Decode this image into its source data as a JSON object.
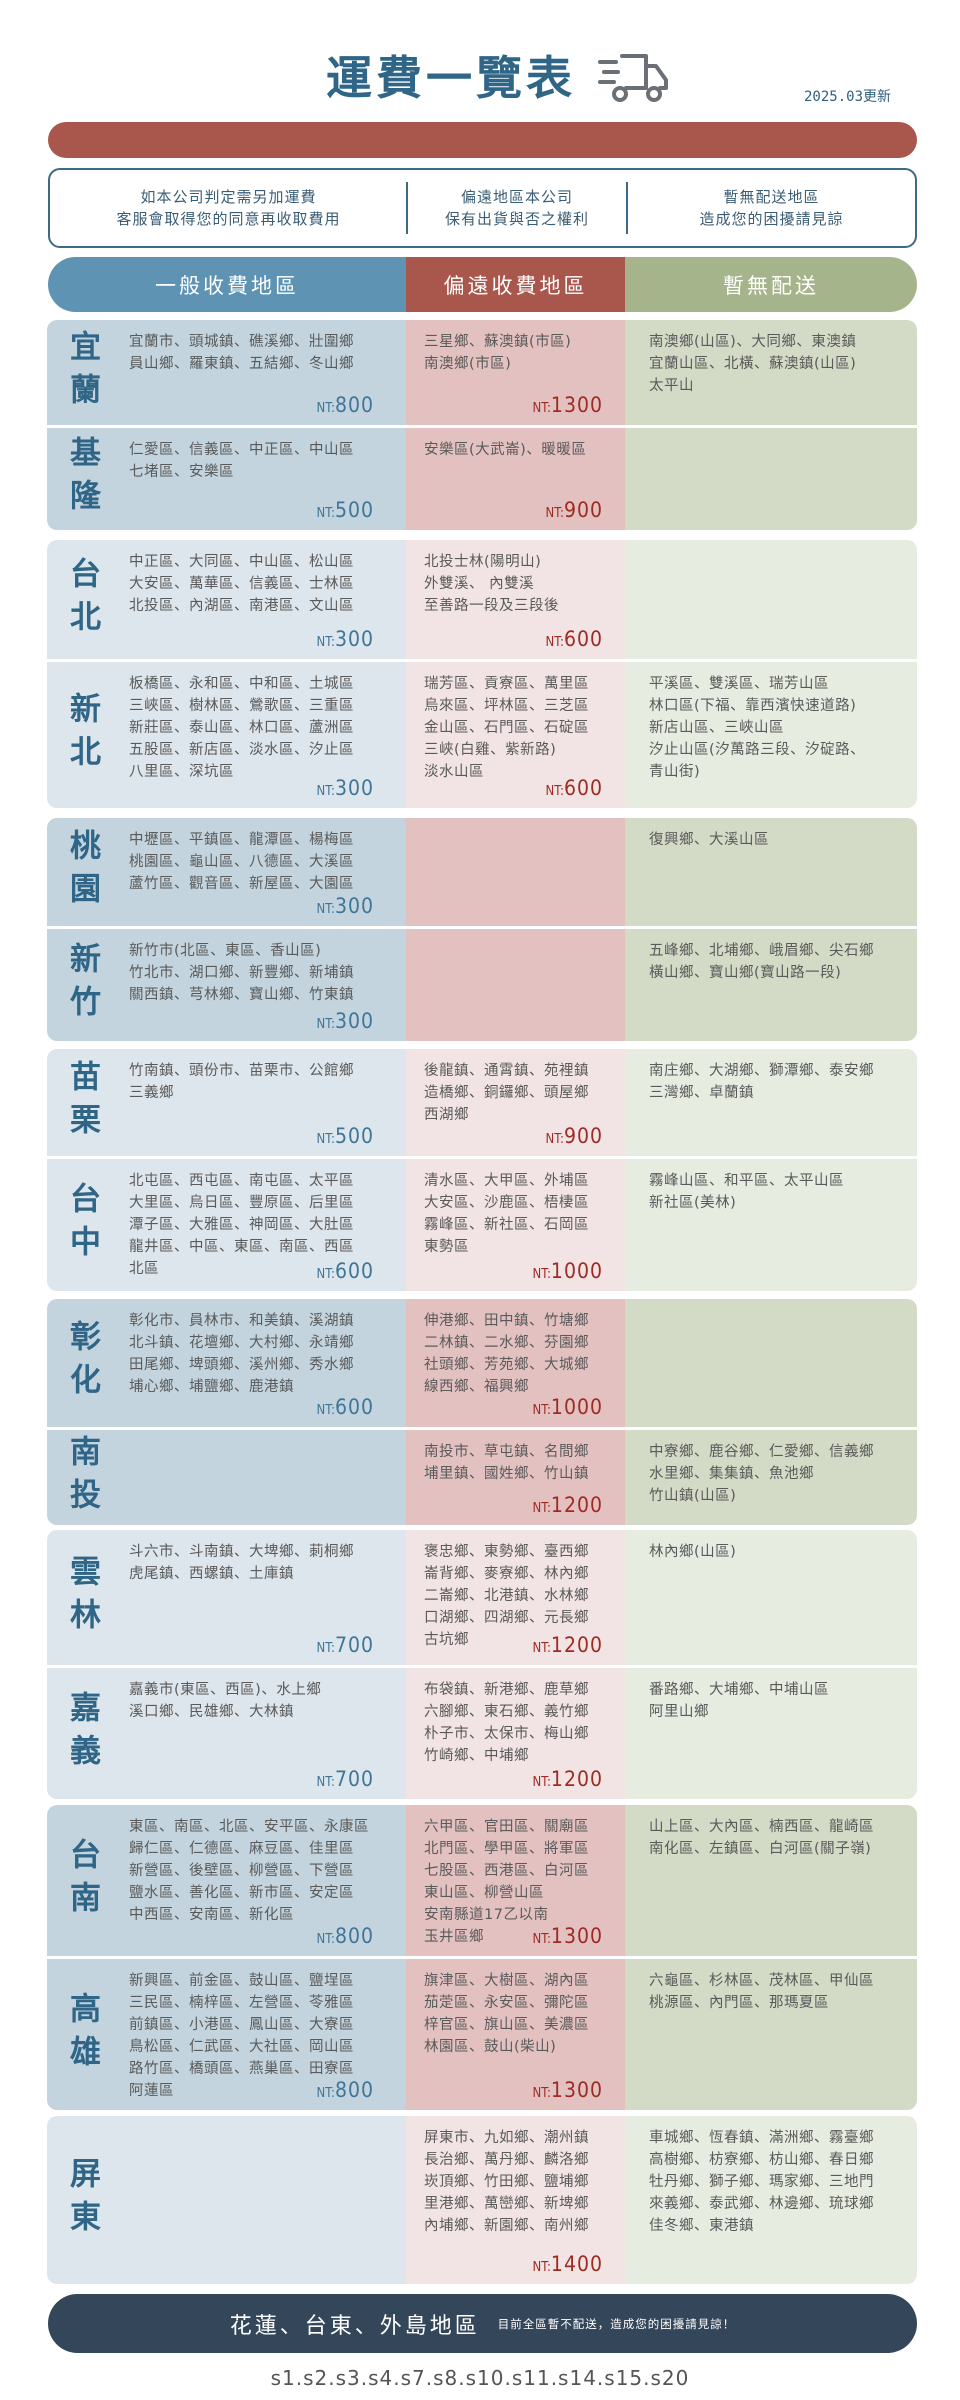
{
  "header": {
    "title": "運費一覽表",
    "title_icon": "truck-icon",
    "updated": "2025.03更新"
  },
  "notice": [
    {
      "lines": [
        "如本公司判定需另加運費",
        "客服會取得您的同意再收取費用"
      ]
    },
    {
      "lines": [
        "偏遠地區本公司",
        "保有出貨與否之權利"
      ]
    },
    {
      "lines": [
        "暫無配送地區",
        "造成您的困擾請見諒"
      ]
    }
  ],
  "columns": [
    {
      "label": "一般收費地區",
      "color": "#5f93b3"
    },
    {
      "label": "偏遠收費地區",
      "color": "#a9574c"
    },
    {
      "label": "暫無配送",
      "color": "#a5b48a"
    }
  ],
  "price_prefix": "NT:",
  "groups": [
    {
      "rows": [
        {
          "name": "宜蘭",
          "normal": {
            "lines": [
              "宜蘭市、頭城鎮、礁溪鄉、壯圍鄉",
              "員山鄉、羅東鎮、五結鄉、冬山鄉"
            ],
            "price": "800"
          },
          "remote": {
            "lines": [
              "三星鄉、蘇澳鎮(市區)",
              "南澳鄉(市區)"
            ],
            "price": "1300"
          },
          "none": {
            "lines": [
              "南澳鄉(山區)、大同鄉、東澳鎮",
              "宜蘭山區、北橫、蘇澳鎮(山區)",
              "太平山"
            ]
          }
        },
        {
          "name": "基隆",
          "normal": {
            "lines": [
              "仁愛區、信義區、中正區、中山區",
              "七堵區、安樂區"
            ],
            "price": "500"
          },
          "remote": {
            "lines": [
              "安樂區(大武崙)、暖暖區"
            ],
            "price": "900"
          },
          "none": {
            "lines": []
          }
        }
      ]
    },
    {
      "rows": [
        {
          "name": "台北",
          "normal": {
            "lines": [
              "中正區、大同區、中山區、松山區",
              "大安區、萬華區、信義區、士林區",
              "北投區、內湖區、南港區、文山區"
            ],
            "price": "300"
          },
          "remote": {
            "lines": [
              "北投士林(陽明山)",
              "外雙溪、 內雙溪",
              "至善路一段及三段後"
            ],
            "price": "600"
          },
          "none": {
            "lines": []
          }
        },
        {
          "name": "新北",
          "normal": {
            "lines": [
              "板橋區、永和區、中和區、土城區",
              "三峽區、樹林區、鶯歌區、三重區",
              "新莊區、泰山區、林口區、蘆洲區",
              "五股區、新店區、淡水區、汐止區",
              "八里區、深坑區"
            ],
            "price": "300"
          },
          "remote": {
            "lines": [
              "瑞芳區、貢寮區、萬里區",
              "烏來區、坪林區、三芝區",
              "金山區、石門區、石碇區",
              "三峽(白雞、紫新路)",
              "淡水山區"
            ],
            "price": "600"
          },
          "none": {
            "lines": [
              "平溪區、雙溪區、瑞芳山區",
              "林口區(下福、靠西濱快速道路)",
              "新店山區、三峽山區",
              "汐止山區(汐萬路三段、汐碇路、",
              "青山街)"
            ]
          }
        }
      ]
    },
    {
      "rows": [
        {
          "name": "桃園",
          "normal": {
            "lines": [
              "中壢區、平鎮區、龍潭區、楊梅區",
              "桃園區、龜山區、八德區、大溪區",
              "蘆竹區、觀音區、新屋區、大園區"
            ],
            "price": "300"
          },
          "remote": {
            "lines": []
          },
          "none": {
            "lines": [
              "復興鄉、大溪山區"
            ]
          }
        },
        {
          "name": "新竹",
          "normal": {
            "lines": [
              "新竹市(北區、東區、香山區)",
              "竹北市、湖口鄉、新豐鄉、新埔鎮",
              "關西鎮、芎林鄉、寶山鄉、竹東鎮"
            ],
            "price": "300"
          },
          "remote": {
            "lines": []
          },
          "none": {
            "lines": [
              "五峰鄉、北埔鄉、峨眉鄉、尖石鄉",
              "橫山鄉、寶山鄉(寶山路一段)"
            ]
          }
        }
      ]
    },
    {
      "rows": [
        {
          "name": "苗栗",
          "normal": {
            "lines": [
              "竹南鎮、頭份市、苗栗市、公館鄉",
              "三義鄉"
            ],
            "price": "500"
          },
          "remote": {
            "lines": [
              "後龍鎮、通霄鎮、苑裡鎮",
              "造橋鄉、銅鑼鄉、頭屋鄉",
              "西湖鄉"
            ],
            "price": "900"
          },
          "none": {
            "lines": [
              "南庄鄉、大湖鄉、獅潭鄉、泰安鄉",
              "三灣鄉、卓蘭鎮"
            ]
          }
        },
        {
          "name": "台中",
          "normal": {
            "lines": [
              "北屯區、西屯區、南屯區、太平區",
              "大里區、烏日區、豐原區、后里區",
              "潭子區、大雅區、神岡區、大肚區",
              "龍井區、中區、東區、南區、西區",
              "北區"
            ],
            "price": "600"
          },
          "remote": {
            "lines": [
              "清水區、大甲區、外埔區",
              "大安區、沙鹿區、梧棲區",
              "霧峰區、新社區、石岡區",
              "東勢區"
            ],
            "price": "1000"
          },
          "none": {
            "lines": [
              "霧峰山區、和平區、太平山區",
              "新社區(美林)"
            ]
          }
        }
      ]
    },
    {
      "rows": [
        {
          "name": "彰化",
          "normal": {
            "lines": [
              "彰化市、員林市、和美鎮、溪湖鎮",
              "北斗鎮、花壇鄉、大村鄉、永靖鄉",
              "田尾鄉、埤頭鄉、溪州鄉、秀水鄉",
              "埔心鄉、埔鹽鄉、鹿港鎮"
            ],
            "price": "600"
          },
          "remote": {
            "lines": [
              "伸港鄉、田中鎮、竹塘鄉",
              "二林鎮、二水鄉、芬園鄉",
              "社頭鄉、芳苑鄉、大城鄉",
              "線西鄉、福興鄉"
            ],
            "price": "1000"
          },
          "none": {
            "lines": []
          }
        },
        {
          "name": "南投",
          "normal": {
            "lines": []
          },
          "remote": {
            "lines": [
              "南投市、草屯鎮、名間鄉",
              "埔里鎮、國姓鄉、竹山鎮"
            ],
            "price": "1200"
          },
          "none": {
            "lines": [
              "中寮鄉、鹿谷鄉、仁愛鄉、信義鄉",
              "水里鄉、集集鎮、魚池鄉",
              "竹山鎮(山區)"
            ]
          }
        }
      ]
    },
    {
      "rows": [
        {
          "name": "雲林",
          "normal": {
            "lines": [
              "斗六市、斗南鎮、大埤鄉、莿桐鄉",
              "虎尾鎮、西螺鎮、土庫鎮"
            ],
            "price": "700"
          },
          "remote": {
            "lines": [
              "褒忠鄉、東勢鄉、臺西鄉",
              "崙背鄉、麥寮鄉、林內鄉",
              "二崙鄉、北港鎮、水林鄉",
              "口湖鄉、四湖鄉、元長鄉",
              "古坑鄉"
            ],
            "price": "1200"
          },
          "none": {
            "lines": [
              "林內鄉(山區)"
            ]
          }
        },
        {
          "name": "嘉義",
          "normal": {
            "lines": [
              "嘉義市(東區、西區)、水上鄉",
              "溪口鄉、民雄鄉、大林鎮"
            ],
            "price": "700"
          },
          "remote": {
            "lines": [
              "布袋鎮、新港鄉、鹿草鄉",
              "六腳鄉、東石鄉、義竹鄉",
              "朴子市、太保市、梅山鄉",
              "竹崎鄉、中埔鄉"
            ],
            "price": "1200"
          },
          "none": {
            "lines": [
              "番路鄉、大埔鄉、中埔山區",
              "阿里山鄉"
            ]
          }
        }
      ]
    },
    {
      "rows": [
        {
          "name": "台南",
          "normal": {
            "lines": [
              "東區、南區、北區、安平區、永康區",
              "歸仁區、仁德區、麻豆區、佳里區",
              "新營區、後壁區、柳營區、下營區",
              "鹽水區、善化區、新市區、安定區",
              "中西區、安南區、新化區"
            ],
            "price": "800"
          },
          "remote": {
            "lines": [
              "六甲區、官田區、關廟區",
              "北門區、學甲區、將軍區",
              "七股區、西港區、白河區",
              "東山區、柳營山區",
              "安南縣道17乙以南",
              "玉井區鄉"
            ],
            "price": "1300"
          },
          "none": {
            "lines": [
              "山上區、大內區、楠西區、龍崎區",
              "南化區、左鎮區、白河區(關子嶺)"
            ]
          }
        },
        {
          "name": "高雄",
          "normal": {
            "lines": [
              "新興區、前金區、鼓山區、鹽埕區",
              "三民區、楠梓區、左營區、苓雅區",
              "前鎮區、小港區、鳳山區、大寮區",
              "鳥松區、仁武區、大社區、岡山區",
              "路竹區、橋頭區、燕巢區、田寮區",
              "阿蓮區"
            ],
            "price": "800"
          },
          "remote": {
            "lines": [
              "旗津區、大樹區、湖內區",
              "茄萣區、永安區、彌陀區",
              "梓官區、旗山區、美濃區",
              "林園區、鼓山(柴山)"
            ],
            "price": "1300"
          },
          "none": {
            "lines": [
              "六龜區、杉林區、茂林區、甲仙區",
              "桃源區、內門區、那瑪夏區"
            ]
          }
        }
      ]
    },
    {
      "rows": [
        {
          "name": "屏東",
          "normal": {
            "lines": []
          },
          "remote": {
            "lines": [
              "屏東市、九如鄉、潮州鎮",
              "長治鄉、萬丹鄉、麟洛鄉",
              "崁頂鄉、竹田鄉、鹽埔鄉",
              "里港鄉、萬巒鄉、新埤鄉",
              "內埔鄉、新園鄉、南州鄉"
            ],
            "price": "1400"
          },
          "none": {
            "lines": [
              "車城鄉、恆春鎮、滿洲鄉、霧臺鄉",
              "高樹鄉、枋寮鄉、枋山鄉、春日鄉",
              "牡丹鄉、獅子鄉、瑪家鄉、三地門",
              "來義鄉、泰武鄉、林邊鄉、琉球鄉",
              "佳冬鄉、東港鎮"
            ]
          }
        }
      ]
    }
  ],
  "footer": {
    "regions": "花蓮、台東、外島地區",
    "note": "目前全區暫不配送，造成您的困擾請見諒！"
  },
  "codes": "s1.s2.s3.s4.s7.s8.s10.s11.s14.s15.s20",
  "colors": {
    "title": "#2f6586",
    "accent_red": "#a9574c",
    "footer": "#34475a",
    "price_normal": "#3f7597",
    "price_remote": "#9e2b22"
  }
}
